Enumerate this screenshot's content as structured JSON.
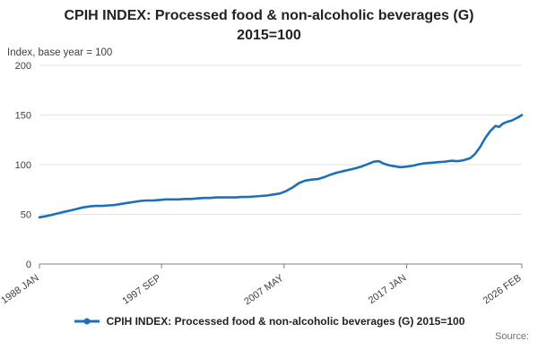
{
  "header": {
    "title_lines": [
      "CPIH INDEX: Processed food & non-alcoholic beverages (G)",
      "2015=100"
    ]
  },
  "chart_data": {
    "type": "line",
    "title": "CPIH INDEX: Processed food & non-alcoholic beverages (G) 2015=100",
    "xlabel": "",
    "ylabel": "Index, base year = 100",
    "ylim": [
      0,
      200
    ],
    "yticks": [
      0,
      50,
      100,
      150,
      200
    ],
    "grid": "horizontal",
    "legend_position": "bottom",
    "xticks": [
      {
        "x": 1988.04,
        "label": "1988 JAN"
      },
      {
        "x": 1997.67,
        "label": "1997 SEP"
      },
      {
        "x": 2007.33,
        "label": "2007 MAY"
      },
      {
        "x": 2017.0,
        "label": "2017 JAN"
      },
      {
        "x": 2026.08,
        "label": "2026 FEB"
      }
    ],
    "series": [
      {
        "name": "CPIH INDEX: Processed food & non-alcoholic beverages (G) 2015=100",
        "color": "#1d70b8",
        "points": [
          [
            1988.04,
            47
          ],
          [
            1988.5,
            48
          ],
          [
            1989,
            49.5
          ],
          [
            1989.5,
            51
          ],
          [
            1990,
            52.5
          ],
          [
            1990.5,
            54
          ],
          [
            1991,
            55.5
          ],
          [
            1991.5,
            57
          ],
          [
            1992,
            58
          ],
          [
            1992.5,
            58.5
          ],
          [
            1993,
            58.5
          ],
          [
            1993.5,
            59
          ],
          [
            1994,
            59.5
          ],
          [
            1994.5,
            60.5
          ],
          [
            1995,
            61.5
          ],
          [
            1995.5,
            62.5
          ],
          [
            1996,
            63.5
          ],
          [
            1996.5,
            64
          ],
          [
            1997,
            64
          ],
          [
            1997.5,
            64.5
          ],
          [
            1998,
            65
          ],
          [
            1998.5,
            65
          ],
          [
            1999,
            65
          ],
          [
            1999.5,
            65.5
          ],
          [
            2000,
            65.5
          ],
          [
            2000.5,
            66
          ],
          [
            2001,
            66.5
          ],
          [
            2001.5,
            66.5
          ],
          [
            2002,
            67
          ],
          [
            2002.5,
            67
          ],
          [
            2003,
            67
          ],
          [
            2003.5,
            67
          ],
          [
            2004,
            67.5
          ],
          [
            2004.5,
            67.5
          ],
          [
            2005,
            68
          ],
          [
            2005.5,
            68.5
          ],
          [
            2006,
            69
          ],
          [
            2006.5,
            70
          ],
          [
            2007,
            71
          ],
          [
            2007.5,
            73.5
          ],
          [
            2008,
            77
          ],
          [
            2008.5,
            81.5
          ],
          [
            2009,
            84
          ],
          [
            2009.5,
            85
          ],
          [
            2010,
            85.5
          ],
          [
            2010.5,
            87.5
          ],
          [
            2011,
            90
          ],
          [
            2011.5,
            92
          ],
          [
            2012,
            93.5
          ],
          [
            2012.5,
            95
          ],
          [
            2013,
            96.5
          ],
          [
            2013.5,
            98.5
          ],
          [
            2014,
            101
          ],
          [
            2014.4,
            103
          ],
          [
            2014.8,
            103.5
          ],
          [
            2015.2,
            101
          ],
          [
            2015.6,
            99.5
          ],
          [
            2016,
            98.5
          ],
          [
            2016.5,
            97.5
          ],
          [
            2017,
            98
          ],
          [
            2017.5,
            99
          ],
          [
            2018,
            100.5
          ],
          [
            2018.5,
            101.5
          ],
          [
            2019,
            102
          ],
          [
            2019.5,
            102.5
          ],
          [
            2020,
            103
          ],
          [
            2020.5,
            104
          ],
          [
            2021,
            103.5
          ],
          [
            2021.5,
            104.5
          ],
          [
            2022,
            106.5
          ],
          [
            2022.4,
            111
          ],
          [
            2022.8,
            118
          ],
          [
            2023.2,
            127
          ],
          [
            2023.6,
            134
          ],
          [
            2024,
            139
          ],
          [
            2024.3,
            138
          ],
          [
            2024.6,
            141.5
          ],
          [
            2025,
            143.5
          ],
          [
            2025.3,
            144.5
          ],
          [
            2025.6,
            146.5
          ],
          [
            2025.9,
            148.5
          ],
          [
            2026.08,
            150
          ]
        ]
      }
    ]
  },
  "footer": {
    "source_label": "Source:"
  }
}
